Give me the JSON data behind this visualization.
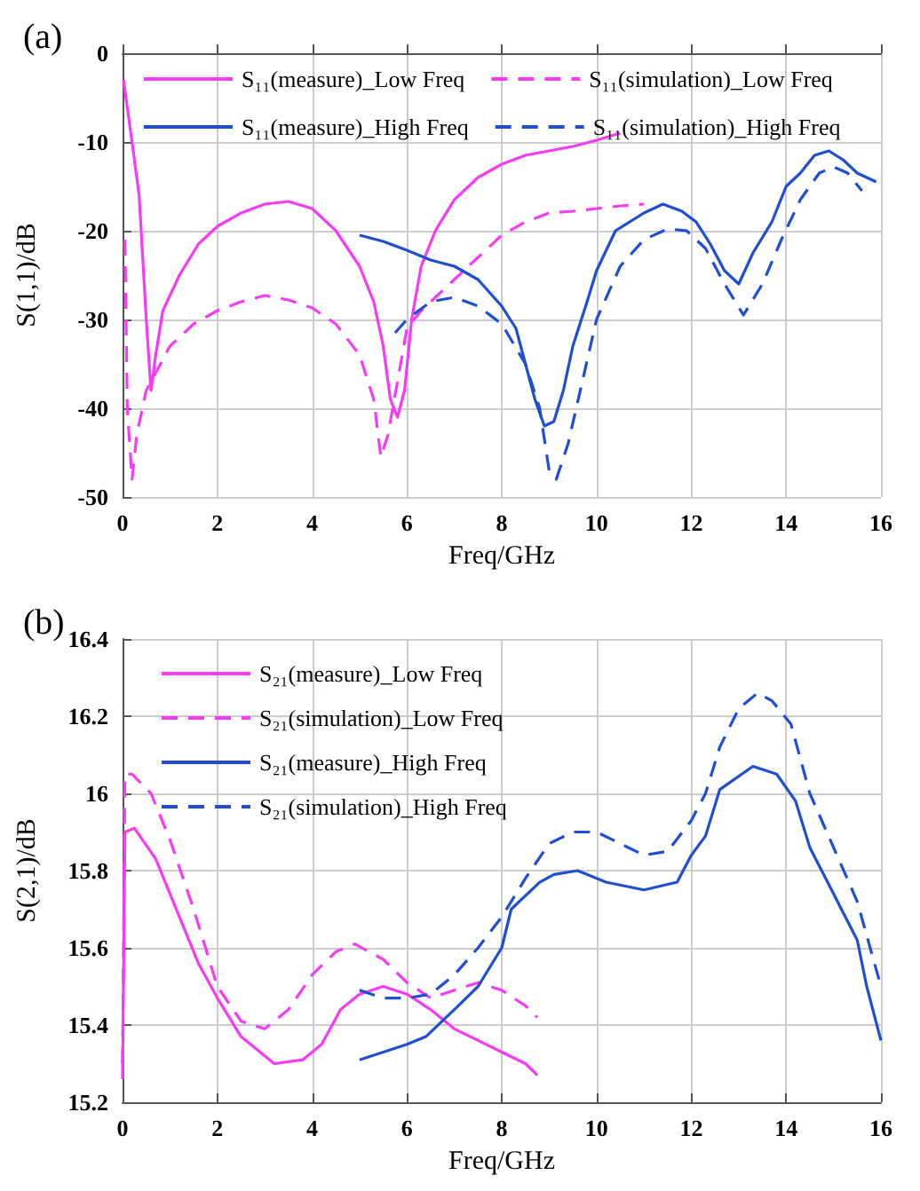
{
  "chart_data": [
    {
      "type": "line",
      "title": "(a)",
      "xlabel": "Freq/GHz",
      "ylabel": "S(1,1)/dB",
      "xlim": [
        0,
        16
      ],
      "xticks": [
        0,
        2,
        4,
        6,
        8,
        10,
        12,
        14,
        16
      ],
      "ylim": [
        -50,
        0
      ],
      "yticks": [
        -50,
        -40,
        -30,
        -20,
        -10,
        0
      ],
      "grid": true,
      "legend": "top",
      "marker": "none",
      "series": [
        {
          "name": "S₁₁(measure)_Low Freq",
          "color": "#f53cf5",
          "line_style": "solid",
          "x": [
            0.02,
            0.2,
            0.35,
            0.5,
            0.6,
            0.7,
            0.85,
            1.2,
            1.6,
            2,
            2.5,
            3,
            3.5,
            4,
            4.5,
            5,
            5.3,
            5.5,
            5.65,
            5.8,
            5.95,
            6.1,
            6.3,
            6.6,
            7,
            7.5,
            8,
            8.5,
            9,
            9.5,
            10,
            10.5
          ],
          "values": [
            -3,
            -10,
            -16,
            -30,
            -38,
            -34,
            -29,
            -25,
            -21.5,
            -19.5,
            -18,
            -17,
            -16.7,
            -17.5,
            -20,
            -24,
            -28,
            -33,
            -39,
            -41,
            -38,
            -30,
            -24,
            -20,
            -16.5,
            -14,
            -12.5,
            -11.5,
            -11,
            -10.5,
            -9.8,
            -9
          ]
        },
        {
          "name": "S₁₁(simulation)_Low Freq",
          "color": "#f53cf5",
          "line_style": "dashed",
          "x": [
            0.05,
            0.1,
            0.2,
            0.3,
            0.5,
            0.7,
            1,
            1.5,
            2,
            2.5,
            3,
            3.5,
            4,
            4.5,
            5,
            5.3,
            5.45,
            5.6,
            5.8,
            6,
            6.3,
            6.6,
            7,
            7.5,
            8,
            8.5,
            9,
            9.5,
            10,
            10.5,
            11
          ],
          "values": [
            -21,
            -40,
            -48,
            -43,
            -38,
            -36,
            -33,
            -30.5,
            -29,
            -28,
            -27.3,
            -27.8,
            -28.7,
            -30.5,
            -34,
            -39,
            -45.5,
            -43,
            -37,
            -31,
            -29,
            -27.5,
            -25.5,
            -23,
            -20.5,
            -19,
            -18,
            -17.8,
            -17.5,
            -17.2,
            -17
          ]
        },
        {
          "name": "S₁₁(measure)_High Freq",
          "color": "#1f4fd0",
          "line_style": "solid",
          "x": [
            5,
            5.5,
            6,
            6.5,
            7,
            7.5,
            8,
            8.3,
            8.5,
            8.7,
            8.9,
            9.1,
            9.3,
            9.5,
            9.8,
            10,
            10.4,
            11,
            11.4,
            11.8,
            12.1,
            12.4,
            12.7,
            13,
            13.3,
            13.7,
            14,
            14.3,
            14.6,
            14.9,
            15.2,
            15.5,
            15.9
          ],
          "values": [
            -20.5,
            -21.2,
            -22.2,
            -23.3,
            -24,
            -25.5,
            -28.5,
            -31,
            -35,
            -39,
            -42,
            -41.5,
            -38,
            -33,
            -28,
            -24.5,
            -20,
            -18,
            -17,
            -17.8,
            -19,
            -21.5,
            -24.5,
            -26,
            -22.5,
            -19,
            -15,
            -13.5,
            -11.5,
            -11,
            -12,
            -13.5,
            -14.5
          ]
        },
        {
          "name": "S₁₁(simulation)_High Freq",
          "color": "#1f4fd0",
          "line_style": "dashed",
          "x": [
            5.75,
            6,
            6.5,
            7,
            7.5,
            8,
            8.5,
            8.8,
            9,
            9.15,
            9.4,
            9.7,
            10,
            10.5,
            11,
            11.5,
            11.9,
            12.3,
            12.7,
            13.1,
            13.5,
            13.9,
            14.3,
            14.7,
            15,
            15.3,
            15.6
          ],
          "values": [
            -31.5,
            -30,
            -28,
            -27.5,
            -28.5,
            -30.5,
            -35,
            -40,
            -47,
            -48,
            -44,
            -37,
            -30,
            -24,
            -21,
            -19.8,
            -20,
            -22,
            -26,
            -29.5,
            -26,
            -21,
            -16.5,
            -13.5,
            -12.8,
            -13.5,
            -15.5
          ]
        }
      ]
    },
    {
      "type": "line",
      "title": "(b)",
      "xlabel": "Freq/GHz",
      "ylabel": "S(2,1)/dB",
      "xlim": [
        0,
        16
      ],
      "xticks": [
        0,
        2,
        4,
        6,
        8,
        10,
        12,
        14,
        16
      ],
      "ylim": [
        15.2,
        16.4
      ],
      "yticks": [
        15.2,
        15.4,
        15.6,
        15.8,
        16.0,
        16.2,
        16.4
      ],
      "grid": true,
      "legend": "top left",
      "marker": "none",
      "series": [
        {
          "name": "S₂₁(measure)_Low Freq",
          "color": "#f53cf5",
          "line_style": "solid",
          "x": [
            0,
            0.05,
            0.25,
            0.7,
            1.2,
            1.6,
            2,
            2.5,
            3,
            3.2,
            3.8,
            4.2,
            4.6,
            5,
            5.5,
            6,
            6.5,
            7,
            7.5,
            8,
            8.5,
            8.75
          ],
          "values": [
            15.26,
            15.9,
            15.91,
            15.83,
            15.68,
            15.56,
            15.47,
            15.37,
            15.32,
            15.3,
            15.31,
            15.35,
            15.44,
            15.48,
            15.5,
            15.48,
            15.44,
            15.39,
            15.36,
            15.33,
            15.3,
            15.27
          ]
        },
        {
          "name": "S₂₁(simulation)_Low Freq",
          "color": "#f53cf5",
          "line_style": "dashed",
          "x": [
            0,
            0.05,
            0.2,
            0.6,
            1,
            1.5,
            2,
            2.5,
            3,
            3.5,
            4,
            4.5,
            4.9,
            5.5,
            6,
            6.5,
            7,
            7.5,
            8,
            8.5,
            8.75
          ],
          "values": [
            15.3,
            16.05,
            16.05,
            16.0,
            15.88,
            15.7,
            15.5,
            15.41,
            15.39,
            15.44,
            15.53,
            15.59,
            15.61,
            15.57,
            15.51,
            15.47,
            15.49,
            15.51,
            15.49,
            15.45,
            15.42
          ]
        },
        {
          "name": "S₂₁(measure)_High Freq",
          "color": "#1f4fd0",
          "line_style": "solid",
          "x": [
            5,
            5.5,
            6,
            6.4,
            7,
            7.5,
            8,
            8.2,
            8.8,
            9.1,
            9.6,
            10.2,
            11,
            11.7,
            12,
            12.3,
            12.6,
            13.3,
            13.8,
            14.2,
            14.5,
            15,
            15.5,
            15.7,
            16
          ],
          "values": [
            15.31,
            15.33,
            15.35,
            15.37,
            15.44,
            15.5,
            15.6,
            15.7,
            15.77,
            15.79,
            15.8,
            15.77,
            15.75,
            15.77,
            15.84,
            15.89,
            16.01,
            16.07,
            16.05,
            15.98,
            15.86,
            15.74,
            15.62,
            15.5,
            15.36
          ]
        },
        {
          "name": "S₂₁(simulation)_High Freq",
          "color": "#1f4fd0",
          "line_style": "dashed",
          "x": [
            5,
            5.5,
            6,
            6.5,
            7,
            7.5,
            8,
            8.5,
            9,
            9.5,
            10,
            10.5,
            11,
            11.5,
            12,
            12.3,
            12.6,
            13,
            13.4,
            13.7,
            14.1,
            14.5,
            15,
            15.5,
            16
          ],
          "values": [
            15.49,
            15.47,
            15.47,
            15.48,
            15.53,
            15.6,
            15.68,
            15.78,
            15.87,
            15.9,
            15.9,
            15.87,
            15.84,
            15.85,
            15.93,
            16.0,
            16.12,
            16.22,
            16.26,
            16.24,
            16.18,
            16.0,
            15.86,
            15.72,
            15.5
          ]
        }
      ]
    }
  ]
}
